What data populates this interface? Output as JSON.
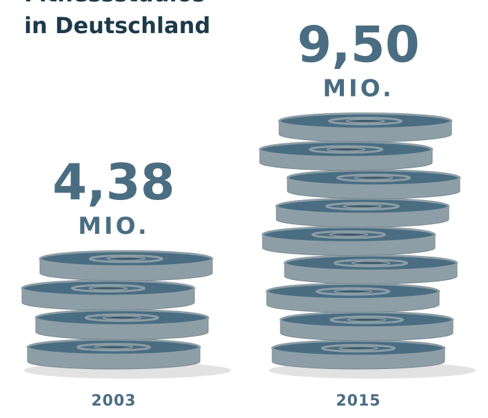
{
  "chart_data": {
    "type": "stack",
    "title_lines": [
      "Fitnessstudios",
      "in Deutschland"
    ],
    "categories": [
      "2003",
      "2015"
    ],
    "values": [
      4.38,
      9.5
    ],
    "value_labels": [
      "4,38",
      "9,50"
    ],
    "unit": "MIO.",
    "color": "#4a6d82"
  }
}
